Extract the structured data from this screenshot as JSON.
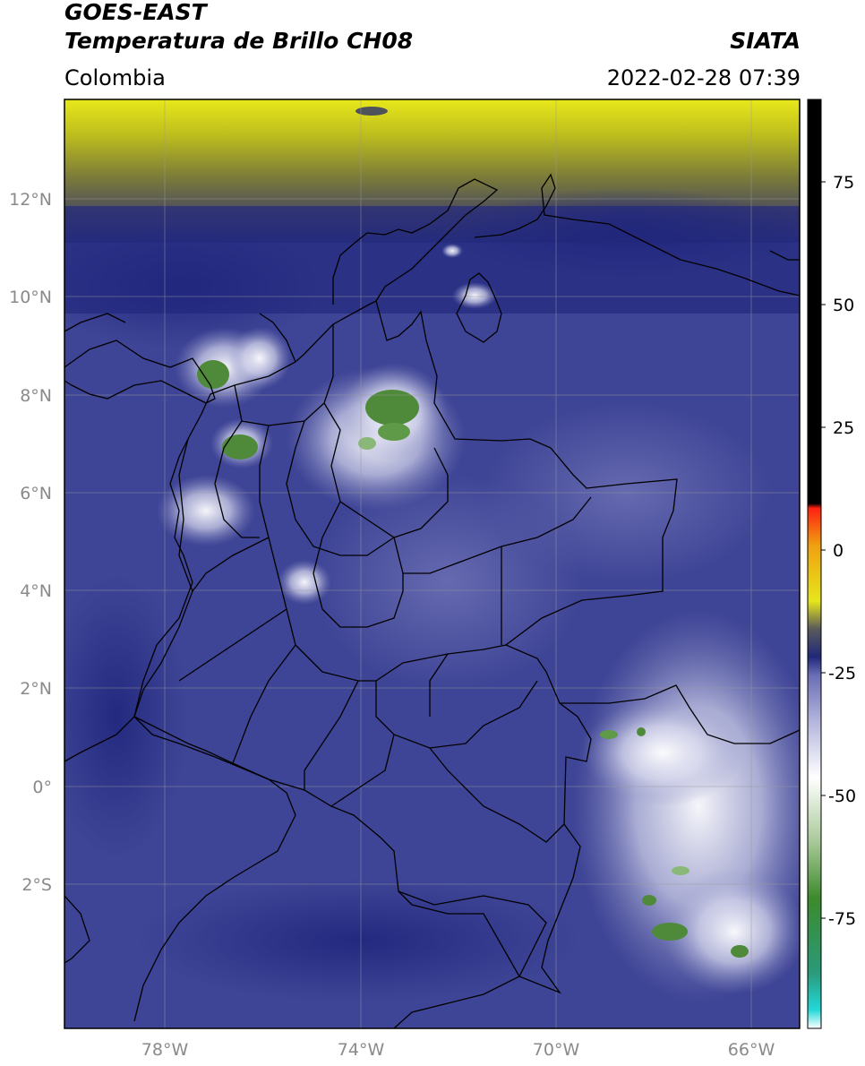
{
  "header": {
    "title_line1": "GOES-EAST",
    "title_line2": "Temperatura de Brillo CH08",
    "brand": "SIATA",
    "region": "Colombia",
    "timestamp": "2022-02-28 07:39"
  },
  "map": {
    "lat_ticks": [
      "12°N",
      "10°N",
      "8°N",
      "6°N",
      "4°N",
      "2°N",
      "0°",
      "2°S"
    ],
    "lon_ticks": [
      "78°W",
      "74°W",
      "70°W",
      "66°W"
    ],
    "colors": {
      "background_blue": "#3f4596",
      "deep_blue": "#22267a",
      "light_purple": "#8a8ec4",
      "cloud_white": "#ecebf5",
      "cold_green": "#4f8a3a",
      "warm_gray": "#5b5b4a",
      "yellow_top": "#e8e81a",
      "border": "#000000"
    }
  },
  "colorbar": {
    "ticks": [
      "75",
      "50",
      "25",
      "0",
      "-25",
      "-50",
      "-75"
    ],
    "colors": [
      "#ffffff",
      "#22d8d8",
      "#2a9a7a",
      "#3c8a2c",
      "#a8c898",
      "#ffffff",
      "#b4b6dc",
      "#6a6eb4",
      "#20287a",
      "#5a5a5a",
      "#e6e61c",
      "#f0a010",
      "#ff2010",
      "#000000"
    ]
  }
}
